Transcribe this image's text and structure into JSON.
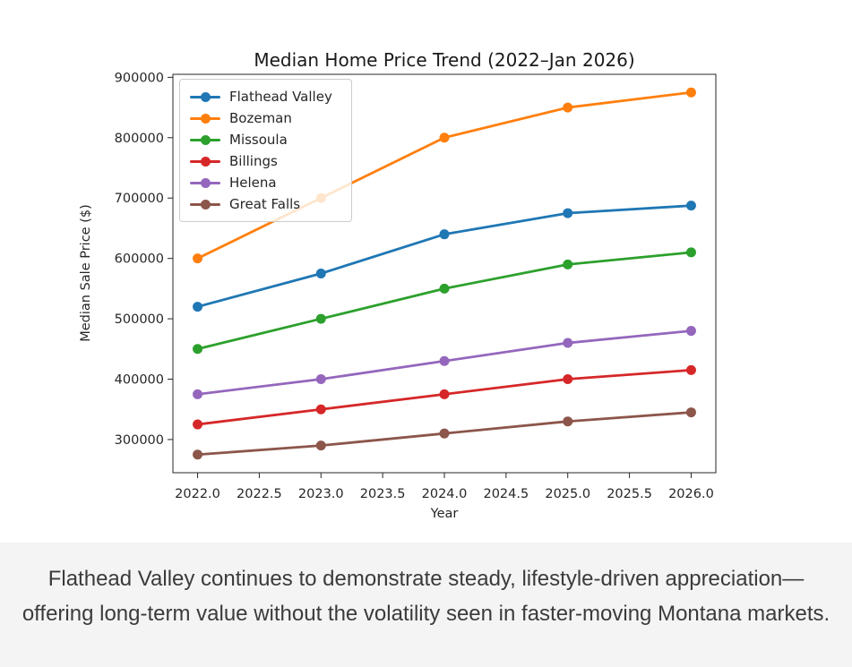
{
  "page": {
    "background": "#ffffff"
  },
  "chart_data": {
    "type": "line",
    "title": "Median Home Price Trend (2022–Jan 2026)",
    "xlabel": "Year",
    "ylabel": "Median Sale Price ($)",
    "x": [
      2022,
      2023,
      2024,
      2025,
      2026
    ],
    "series": [
      {
        "name": "Flathead Valley",
        "color": "#1f77b4",
        "values": [
          520000,
          575000,
          640000,
          675000,
          687500
        ]
      },
      {
        "name": "Bozeman",
        "color": "#ff7f0e",
        "values": [
          600000,
          700000,
          800000,
          850000,
          875000
        ]
      },
      {
        "name": "Missoula",
        "color": "#2ca02c",
        "values": [
          450000,
          500000,
          550000,
          590000,
          610000
        ]
      },
      {
        "name": "Billings",
        "color": "#d62728",
        "values": [
          325000,
          350000,
          375000,
          400000,
          415000
        ]
      },
      {
        "name": "Helena",
        "color": "#9467bd",
        "values": [
          375000,
          400000,
          430000,
          460000,
          480000
        ]
      },
      {
        "name": "Great Falls",
        "color": "#8c564b",
        "values": [
          275000,
          290000,
          310000,
          330000,
          345000
        ]
      }
    ],
    "xlim": [
      2021.8,
      2026.2
    ],
    "ylim": [
      245000,
      905000
    ],
    "x_ticks": [
      2022.0,
      2022.5,
      2023.0,
      2023.5,
      2024.0,
      2024.5,
      2025.0,
      2025.5,
      2026.0
    ],
    "x_tick_labels": [
      "2022.0",
      "2022.5",
      "2023.0",
      "2023.5",
      "2024.0",
      "2024.5",
      "2025.0",
      "2025.5",
      "2026.0"
    ],
    "y_ticks": [
      300000,
      400000,
      500000,
      600000,
      700000,
      800000,
      900000
    ],
    "y_tick_labels": [
      "300000",
      "400000",
      "500000",
      "600000",
      "700000",
      "800000",
      "900000"
    ],
    "grid": false,
    "legend_position": "upper left",
    "legend_entries": [
      "Flathead Valley",
      "Bozeman",
      "Missoula",
      "Billings",
      "Helena",
      "Great Falls"
    ]
  },
  "caption": {
    "text": "Flathead Valley continues to demonstrate steady, lifestyle-driven appreciation—offering long-term value without the volatility seen in faster-moving Montana markets.",
    "background": "#f4f4f4",
    "color": "#3b3b3b"
  }
}
